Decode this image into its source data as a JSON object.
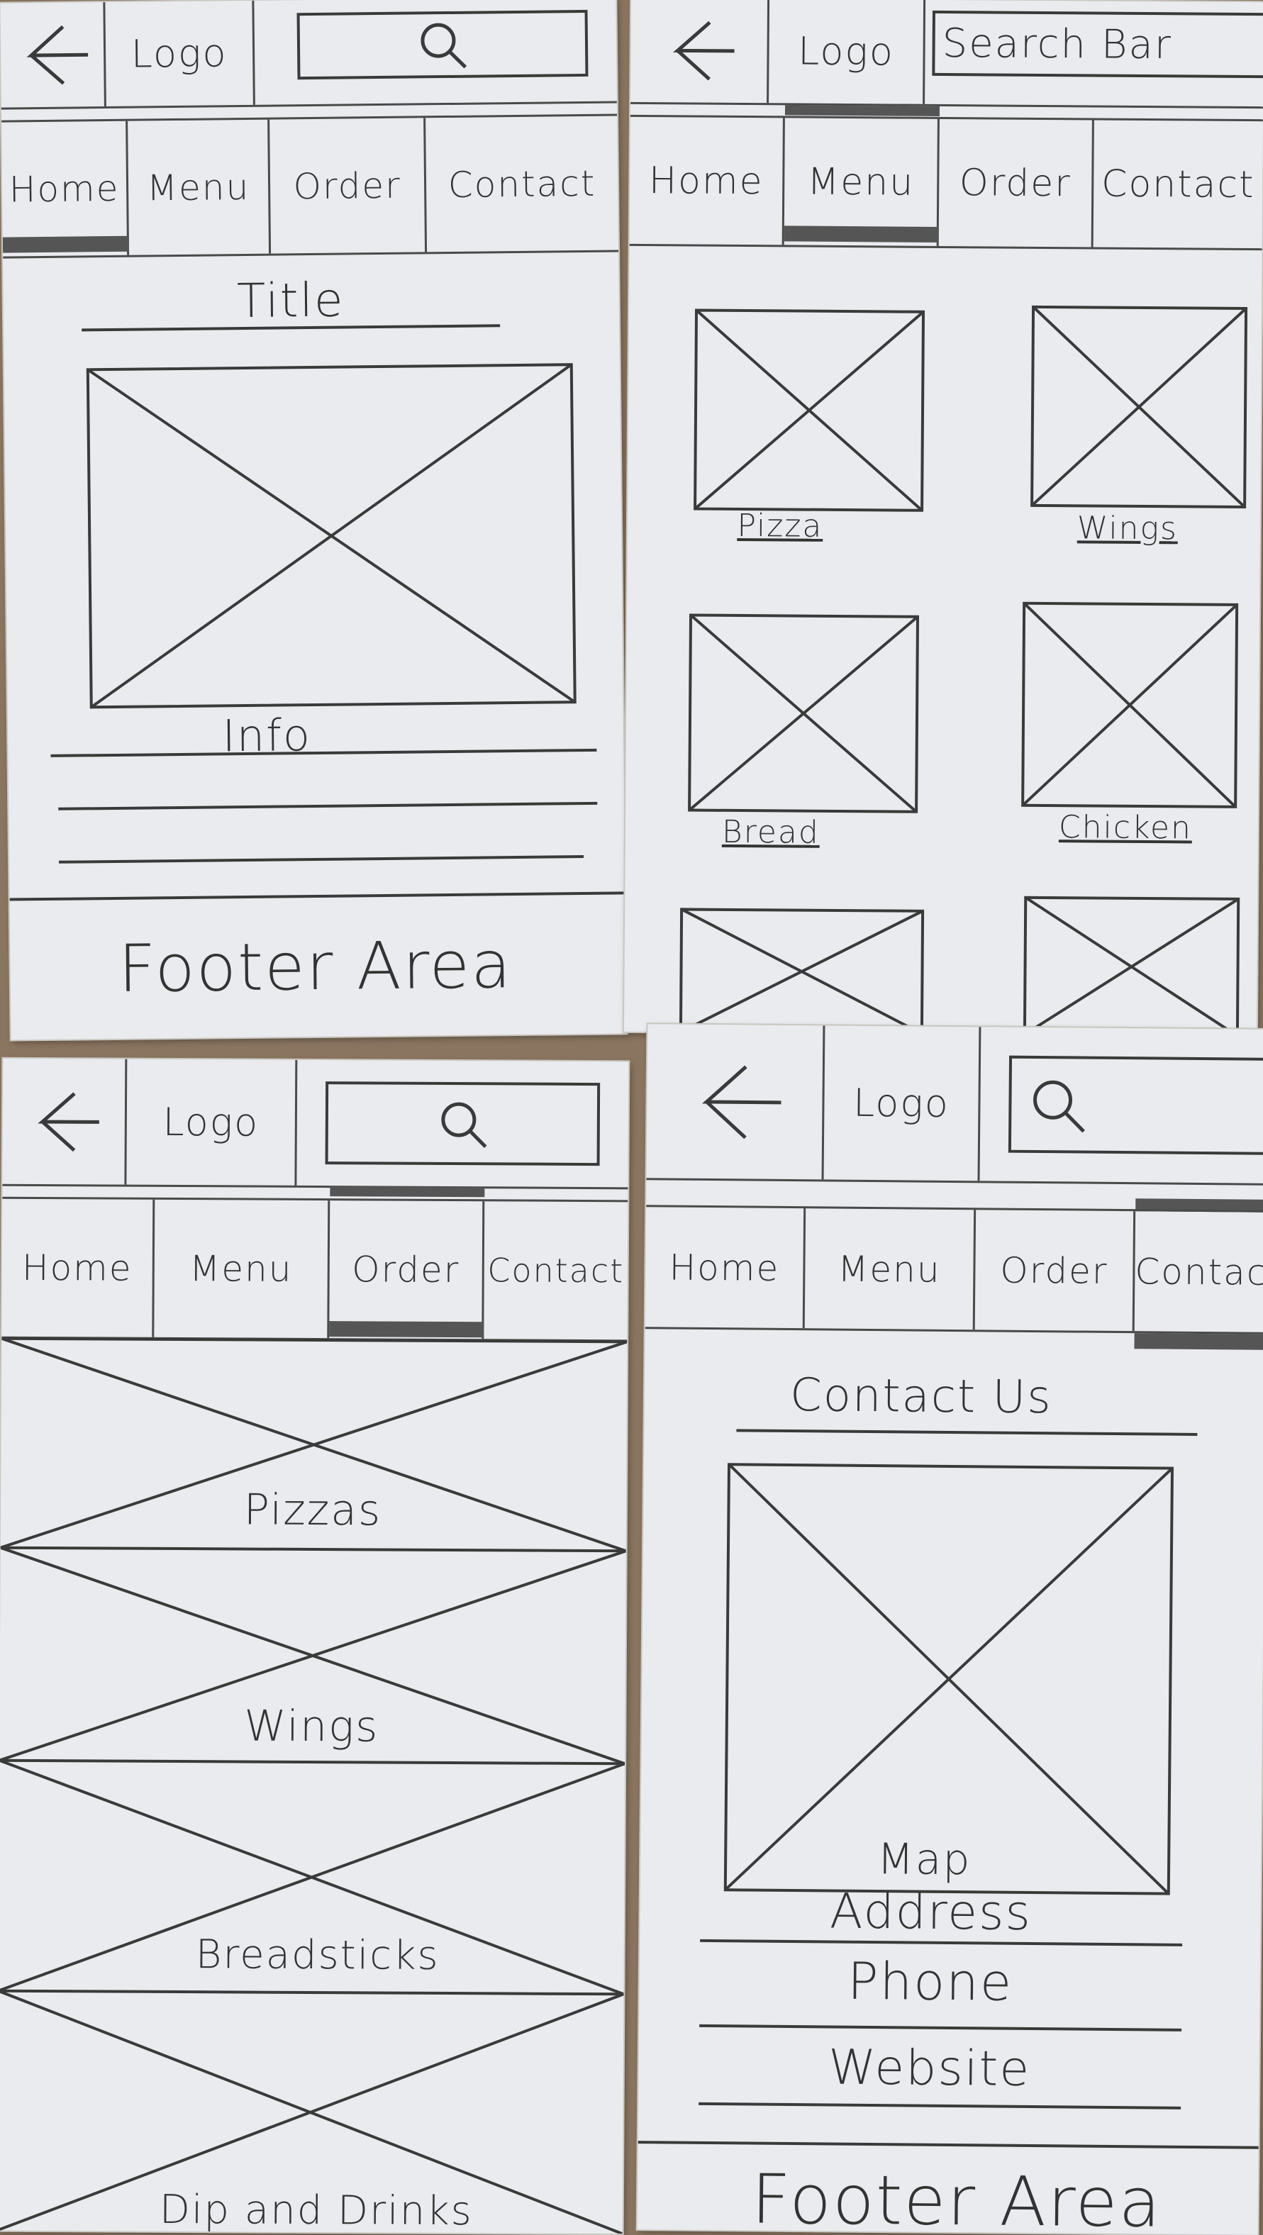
{
  "header": {
    "logo": "Logo",
    "search_label": "Search Bar"
  },
  "nav": [
    "Home",
    "Menu",
    "Order",
    "Contact"
  ],
  "home": {
    "title": "Title",
    "info": "Info",
    "footer": "Footer Area"
  },
  "menu": {
    "items": [
      "Pizza",
      "Wings",
      "Bread",
      "Chicken"
    ]
  },
  "order": {
    "categories": [
      "Pizzas",
      "Wings",
      "Breadsticks",
      "Dip and Drinks"
    ]
  },
  "contact": {
    "title": "Contact Us",
    "map": "Map",
    "fields": [
      "Address",
      "Phone",
      "Website"
    ],
    "footer": "Footer Area"
  },
  "icons": {
    "back": "back-arrow-icon",
    "search": "search-icon",
    "placeholder": "image-placeholder-icon"
  }
}
